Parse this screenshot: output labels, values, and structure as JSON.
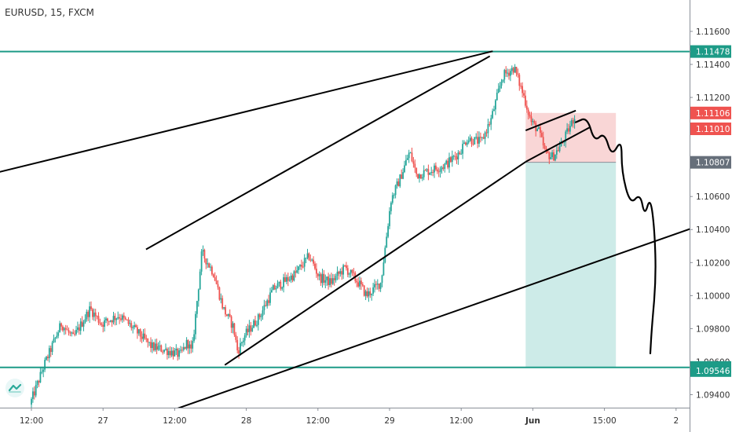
{
  "symbol_title": "EURUSD, 15, FXCM",
  "colors": {
    "up": "#26a69a",
    "down": "#ef5350",
    "line": "#000000",
    "hline": "#1d9b87",
    "stop_zone": "#f9d6d6",
    "target_zone": "#cdebe8"
  },
  "chart_data": {
    "type": "candlestick",
    "title": "EURUSD, 15, FXCM",
    "y_axis": {
      "min": 1.0925,
      "max": 1.1179,
      "ticks": [
        "1.11600",
        "1.11400",
        "1.11200",
        "1.11000",
        "1.10800",
        "1.10600",
        "1.10400",
        "1.10200",
        "1.10000",
        "1.09800",
        "1.09600",
        "1.09400"
      ],
      "tick_values": [
        1.116,
        1.114,
        1.112,
        1.11,
        1.108,
        1.106,
        1.104,
        1.102,
        1.1,
        1.098,
        1.096,
        1.094
      ]
    },
    "x_axis": {
      "labels": [
        "12:00",
        "27",
        "12:00",
        "28",
        "12:00",
        "29",
        "12:00",
        "Jun",
        "15:00",
        "2"
      ],
      "positions": [
        0.5,
        1.0,
        1.5,
        2.0,
        2.5,
        3.0,
        3.5,
        4.0,
        4.5,
        5.0
      ],
      "bold": [
        false,
        false,
        false,
        false,
        false,
        false,
        false,
        true,
        false,
        false
      ]
    },
    "price_path": [
      [
        0.5,
        1.0934
      ],
      [
        0.6,
        1.0958
      ],
      [
        0.72,
        1.0983
      ],
      [
        0.8,
        1.0974
      ],
      [
        0.92,
        1.0992
      ],
      [
        1.0,
        1.0983
      ],
      [
        1.12,
        1.0988
      ],
      [
        1.2,
        1.0982
      ],
      [
        1.35,
        1.0969
      ],
      [
        1.45,
        1.0967
      ],
      [
        1.55,
        1.0964
      ],
      [
        1.6,
        1.0972
      ],
      [
        1.63,
        1.0965
      ],
      [
        1.7,
        1.1026
      ],
      [
        1.78,
        1.1014
      ],
      [
        1.85,
        1.0992
      ],
      [
        1.92,
        1.0981
      ],
      [
        1.95,
        1.0966
      ],
      [
        2.0,
        1.0976
      ],
      [
        2.1,
        1.0987
      ],
      [
        2.2,
        1.1004
      ],
      [
        2.35,
        1.1013
      ],
      [
        2.45,
        1.1024
      ],
      [
        2.52,
        1.1011
      ],
      [
        2.6,
        1.1008
      ],
      [
        2.7,
        1.1017
      ],
      [
        2.8,
        1.1007
      ],
      [
        2.85,
        1.1
      ],
      [
        2.95,
        1.1008
      ],
      [
        3.02,
        1.1058
      ],
      [
        3.08,
        1.107
      ],
      [
        3.15,
        1.1087
      ],
      [
        3.2,
        1.1073
      ],
      [
        3.3,
        1.1076
      ],
      [
        3.4,
        1.1079
      ],
      [
        3.5,
        1.1087
      ],
      [
        3.55,
        1.1095
      ],
      [
        3.65,
        1.1093
      ],
      [
        3.72,
        1.1107
      ],
      [
        3.8,
        1.1133
      ],
      [
        3.88,
        1.1138
      ],
      [
        3.95,
        1.112
      ],
      [
        4.0,
        1.1105
      ],
      [
        4.05,
        1.11
      ],
      [
        4.1,
        1.1086
      ],
      [
        4.15,
        1.1084
      ],
      [
        4.22,
        1.1093
      ],
      [
        4.3,
        1.1108
      ]
    ],
    "trend_lines": [
      [
        [
          0.0,
          1.1069
        ],
        [
          3.72,
          1.1148
        ]
      ],
      [
        [
          1.3,
          1.1028
        ],
        [
          3.7,
          1.1145
        ]
      ],
      [
        [
          1.85,
          1.0958
        ],
        [
          3.95,
          1.1081
        ]
      ],
      [
        [
          1.3,
          1.0925
        ],
        [
          5.25,
          1.1045
        ]
      ],
      [
        [
          3.95,
          1.11
        ],
        [
          4.3,
          1.1112
        ]
      ],
      [
        [
          3.95,
          1.1081
        ],
        [
          4.4,
          1.1102
        ]
      ]
    ],
    "drawn_path": [
      [
        4.3,
        1.1105
      ],
      [
        4.38,
        1.1108
      ],
      [
        4.43,
        1.1093
      ],
      [
        4.5,
        1.1099
      ],
      [
        4.55,
        1.1084
      ],
      [
        4.62,
        1.1095
      ],
      [
        4.62,
        1.1075
      ],
      [
        4.68,
        1.1055
      ],
      [
        4.75,
        1.1062
      ],
      [
        4.78,
        1.1048
      ],
      [
        4.82,
        1.106
      ],
      [
        4.85,
        1.104
      ],
      [
        4.86,
        1.101
      ],
      [
        4.83,
        1.098
      ],
      [
        4.82,
        1.0965
      ]
    ],
    "horizontal_levels": [
      1.11478,
      1.09565
    ],
    "position": {
      "entry": 1.10807,
      "stop": 1.11106,
      "target": 1.09565,
      "x_start": 3.95,
      "x_end": 4.58
    },
    "price_labels": [
      {
        "value": 1.11478,
        "text": "1.11478",
        "color": "#1d9b87"
      },
      {
        "value": 1.11106,
        "text": "1.11106",
        "color": "#ef5350"
      },
      {
        "value": 1.1101,
        "text": "1.11010",
        "color": "#ef5350"
      },
      {
        "value": 1.10807,
        "text": "1.10807",
        "color": "#666f7a"
      },
      {
        "value": 1.09565,
        "text": "1.09565",
        "color": "#1d9b87"
      },
      {
        "value": 1.09546,
        "text": "1.09546",
        "color": "#1d9b87"
      }
    ]
  }
}
